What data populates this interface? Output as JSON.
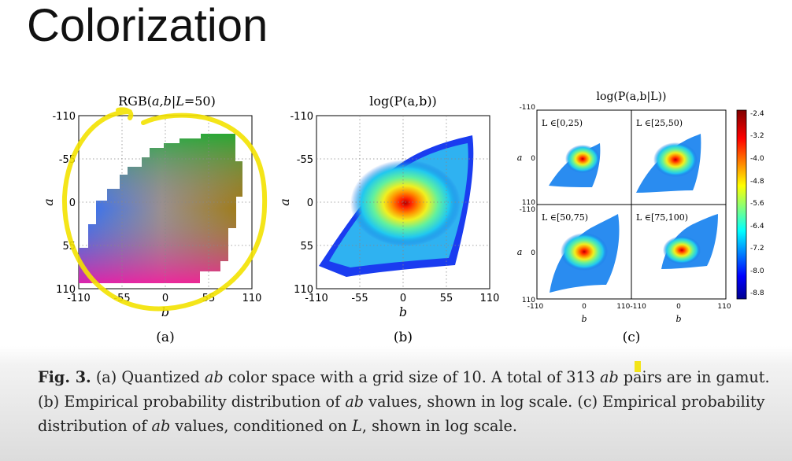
{
  "slide": {
    "title": "Colorization"
  },
  "panels": {
    "a": {
      "title_prefix": "RGB(",
      "title_vars": "a,b",
      "title_mid": "|",
      "title_L": "L",
      "title_suffix": "=50)",
      "xlabel": "b",
      "ylabel": "a",
      "x_ticks": [
        "-110",
        "-55",
        "0",
        "55",
        "110"
      ],
      "y_ticks": [
        "-110",
        "-55",
        "0",
        "55",
        "110"
      ],
      "tag": "(a)"
    },
    "b": {
      "title": "log(P(a,b))",
      "xlabel": "b",
      "ylabel": "a",
      "x_ticks": [
        "-110",
        "-55",
        "0",
        "55",
        "110"
      ],
      "y_ticks": [
        "-110",
        "-55",
        "0",
        "55",
        "110"
      ],
      "tag": "(b)"
    },
    "c": {
      "title": "log(P(a,b|L))",
      "xlabel": "b",
      "ylabel": "a",
      "tag": "(c)",
      "sub_labels": [
        "L ∈[0,25)",
        "L ∈[25,50)",
        "L ∈[50,75)",
        "L ∈[75,100)"
      ],
      "tick_neg": "-110",
      "tick_zero": "0",
      "tick_pos": "110",
      "tick_combined": "110-110",
      "colorbar_ticks": [
        "-2.4",
        "-3.2",
        "-4.0",
        "-4.8",
        "-5.6",
        "-6.4",
        "-7.2",
        "-8.0",
        "-8.8"
      ]
    }
  },
  "caption": {
    "fig_label": "Fig. 3.",
    "part1": " (a) Quantized ",
    "ab1": "ab",
    "part2": " color space with a grid size of 10. A total of 313 ",
    "ab2": "ab",
    "part3": " pairs are in gamut. (b) Empirical probability distribution of ",
    "ab3": "ab",
    "part4": " values, shown in log scale. (c) Empirical probability distribution of ",
    "ab4": "ab",
    "part5": " values, conditioned on ",
    "L": "L",
    "part6": ", shown in log scale."
  },
  "colors": {
    "annotation": "#f3e200"
  }
}
